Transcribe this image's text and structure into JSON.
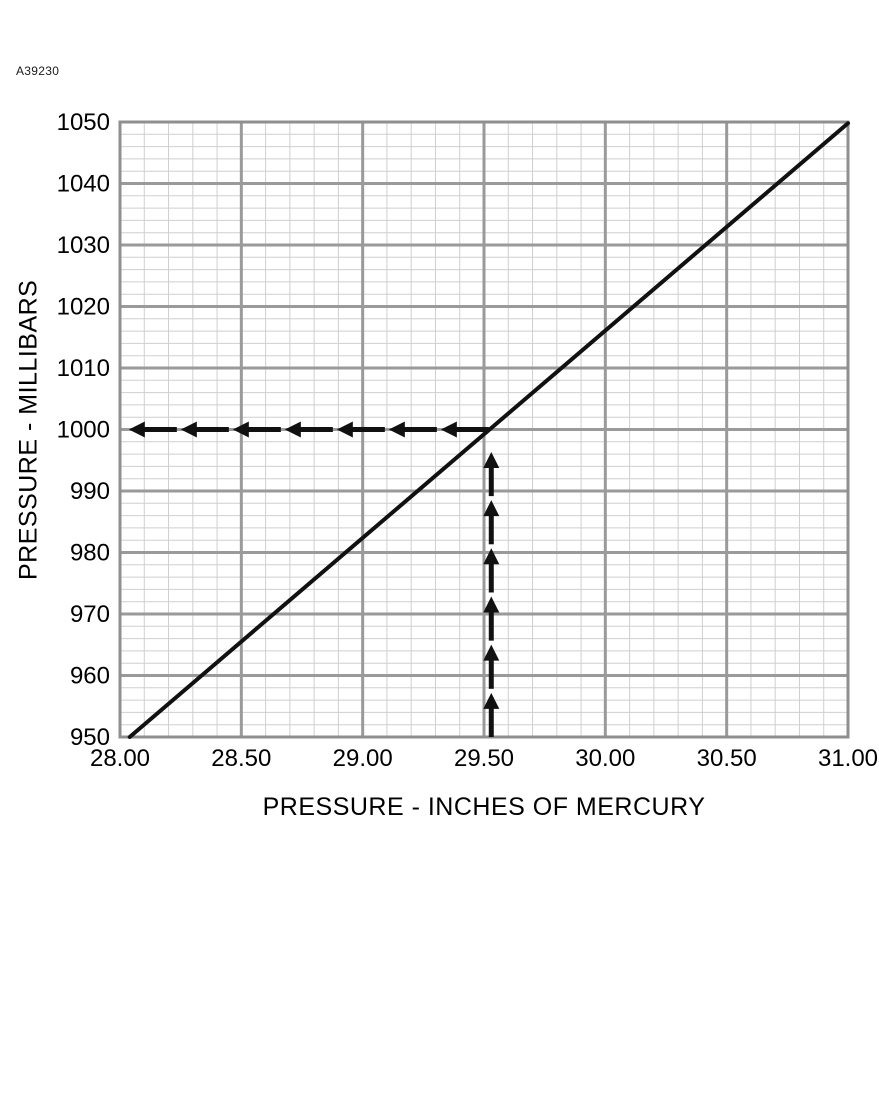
{
  "figure_label": "A39230",
  "chart_data": {
    "type": "line",
    "title": "",
    "xlabel": "PRESSURE - INCHES OF MERCURY",
    "ylabel": "PRESSURE - MILLIBARS",
    "xlim": [
      28.0,
      31.0
    ],
    "ylim": [
      950,
      1050
    ],
    "x_major_step": 0.5,
    "x_minor_step": 0.1,
    "y_major_step": 10,
    "y_minor_step": 2,
    "x_tick_labels": [
      "28.00",
      "28.50",
      "29.00",
      "29.50",
      "30.00",
      "30.50",
      "31.00"
    ],
    "x_tick_values": [
      28.0,
      28.5,
      29.0,
      29.5,
      30.0,
      30.5,
      31.0
    ],
    "y_tick_labels": [
      "950",
      "960",
      "970",
      "980",
      "990",
      "1000",
      "1010",
      "1020",
      "1030",
      "1040",
      "1050"
    ],
    "y_tick_values": [
      950,
      960,
      970,
      980,
      990,
      1000,
      1010,
      1020,
      1030,
      1040,
      1050
    ],
    "grid": true,
    "legend": "none",
    "series": [
      {
        "name": "inches-to-millibars-conversion-line",
        "x": [
          28.04,
          31.0
        ],
        "y": [
          950,
          1049.8
        ]
      }
    ],
    "annotations": [
      {
        "name": "vertical-guide-arrow",
        "type": "dashed-arrow-chain",
        "direction": "up",
        "x": 29.53,
        "y_start": 950,
        "y_end": 997,
        "arrow_count": 6,
        "meaning": "29.53 inches of mercury"
      },
      {
        "name": "horizontal-guide-arrow",
        "type": "dashed-arrow-chain",
        "direction": "left",
        "y": 1000,
        "x_start": 29.52,
        "x_end": 28.02,
        "arrow_count": 7,
        "meaning": "equals 1000 millibars"
      }
    ],
    "colors": {
      "line": "#111111",
      "arrow": "#111111",
      "major_grid": "#9a9a9a",
      "minor_grid": "#cfcfcf",
      "border": "#8f8f8f",
      "background": "#ffffff"
    }
  }
}
